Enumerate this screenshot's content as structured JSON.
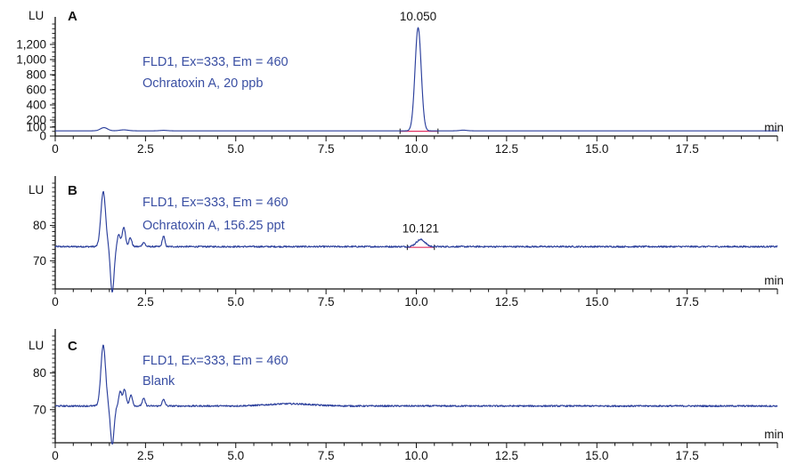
{
  "colors": {
    "trace": "#2b3f9c",
    "baseline": "#e03060",
    "axis": "#111111",
    "annotation": "#3a4fa3"
  },
  "chart_data": [
    {
      "type": "line",
      "panel_label": "A",
      "ylabel": "LU",
      "xlabel": "min",
      "xlim": [
        0,
        20
      ],
      "x_ticks": [
        "0",
        "2.5",
        "5.0",
        "7.5",
        "10.0",
        "12.5",
        "15.0",
        "17.5"
      ],
      "ylim": [
        0,
        1400
      ],
      "y_ticks": [
        "0",
        "100",
        "200",
        "400",
        "600",
        "800",
        "1,000",
        "1,200"
      ],
      "annotations": [
        "FLD1, Ex=333, Em = 460",
        "Ochratoxin A, 20 ppb"
      ],
      "baseline_value": 65,
      "features": [
        {
          "x": 1.35,
          "height": 40,
          "width": 0.1
        },
        {
          "x": 1.9,
          "height": 12,
          "width": 0.12
        },
        {
          "x": 3.0,
          "height": 6,
          "width": 0.1
        },
        {
          "x": 10.05,
          "height": 1290,
          "width": 0.085
        },
        {
          "x": 11.3,
          "height": 8,
          "width": 0.1
        }
      ],
      "peaks": [
        {
          "x": 10.05,
          "label": "10.050",
          "value": 1355,
          "integration": [
            9.55,
            10.6
          ]
        }
      ]
    },
    {
      "type": "line",
      "panel_label": "B",
      "ylabel": "LU",
      "xlabel": "min",
      "xlim": [
        0,
        20
      ],
      "x_ticks": [
        "0",
        "2.5",
        "5.0",
        "7.5",
        "10.0",
        "12.5",
        "15.0",
        "17.5"
      ],
      "ylim": [
        62,
        92
      ],
      "y_ticks": [
        "70",
        "80"
      ],
      "annotations": [
        "FLD1, Ex=333, Em = 460",
        "Ochratoxin A, 156.25 ppt"
      ],
      "baseline_value": 74,
      "features": [
        {
          "x": 1.33,
          "height": 15.6,
          "width": 0.065
        },
        {
          "x": 1.58,
          "height": -13,
          "width": 0.05
        },
        {
          "x": 1.76,
          "height": 3.5,
          "width": 0.04
        },
        {
          "x": 1.9,
          "height": 5.5,
          "width": 0.045
        },
        {
          "x": 2.08,
          "height": 2.5,
          "width": 0.04
        },
        {
          "x": 2.45,
          "height": 1.2,
          "width": 0.04
        },
        {
          "x": 3.0,
          "height": 3.0,
          "width": 0.035
        },
        {
          "x": 10.12,
          "height": 2.0,
          "width": 0.12
        }
      ],
      "peaks": [
        {
          "x": 10.121,
          "label": "10.121",
          "value": 76.0,
          "integration": [
            9.75,
            10.5
          ]
        }
      ]
    },
    {
      "type": "line",
      "panel_label": "C",
      "ylabel": "LU",
      "xlabel": "min",
      "xlim": [
        0,
        20
      ],
      "x_ticks": [
        "0",
        "2.5",
        "5.0",
        "7.5",
        "10.0",
        "12.5",
        "15.0",
        "17.5"
      ],
      "ylim": [
        61,
        90
      ],
      "y_ticks": [
        "70",
        "80"
      ],
      "annotations": [
        "FLD1, Ex=333, Em = 460",
        "Blank"
      ],
      "baseline_value": 71,
      "features": [
        {
          "x": 1.33,
          "height": 16.5,
          "width": 0.065
        },
        {
          "x": 1.58,
          "height": -10.5,
          "width": 0.05
        },
        {
          "x": 1.8,
          "height": 3.8,
          "width": 0.04
        },
        {
          "x": 1.92,
          "height": 4.5,
          "width": 0.045
        },
        {
          "x": 2.1,
          "height": 3.0,
          "width": 0.04
        },
        {
          "x": 2.45,
          "height": 2.0,
          "width": 0.04
        },
        {
          "x": 3.0,
          "height": 1.7,
          "width": 0.04
        },
        {
          "x": 6.5,
          "height": 0.6,
          "width": 0.6
        }
      ],
      "peaks": []
    }
  ]
}
